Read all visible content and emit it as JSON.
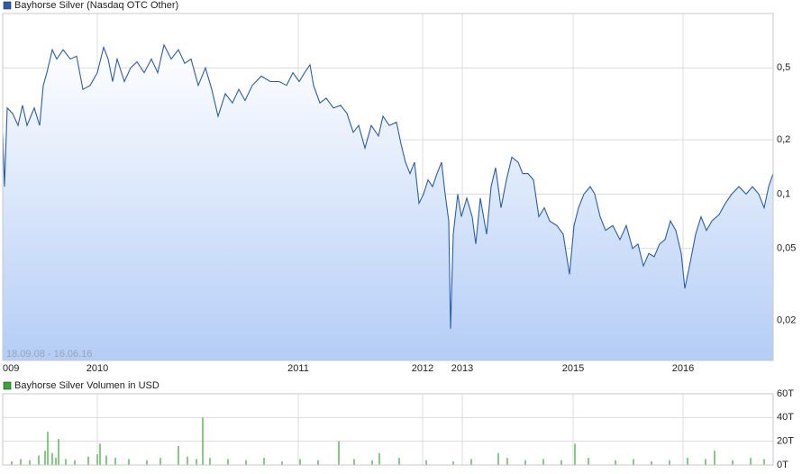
{
  "chart_data": [
    {
      "type": "line",
      "log_scale": true,
      "grid": true,
      "annotation": "18.09.08 - 16.06.16",
      "xlim": [
        0,
        855
      ],
      "ylim": [
        0.012,
        1.0
      ],
      "xticks": [
        {
          "value": 0,
          "label": "009"
        },
        {
          "value": 105,
          "label": "2010"
        },
        {
          "value": 328,
          "label": "2011"
        },
        {
          "value": 466,
          "label": "2012"
        },
        {
          "value": 510,
          "label": "2013"
        },
        {
          "value": 633,
          "label": "2015"
        },
        {
          "value": 755,
          "label": "2016"
        }
      ],
      "yticks": [
        {
          "value": 0.02,
          "label": "0,02"
        },
        {
          "value": 0.05,
          "label": "0,05"
        },
        {
          "value": 0.1,
          "label": "0,1"
        },
        {
          "value": 0.2,
          "label": "0,2"
        },
        {
          "value": 0.5,
          "label": "0,5"
        }
      ],
      "x": [
        0,
        2,
        5,
        11,
        17,
        22,
        27,
        35,
        41,
        45,
        49,
        55,
        60,
        67,
        75,
        82,
        89,
        97,
        105,
        112,
        117,
        122,
        127,
        135,
        142,
        149,
        157,
        165,
        172,
        179,
        187,
        195,
        202,
        209,
        217,
        225,
        232,
        239,
        247,
        255,
        262,
        269,
        277,
        287,
        297,
        307,
        315,
        322,
        329,
        335,
        341,
        345,
        352,
        359,
        367,
        375,
        382,
        389,
        395,
        402,
        409,
        417,
        422,
        429,
        437,
        442,
        447,
        452,
        457,
        462,
        467,
        472,
        477,
        482,
        487,
        491,
        495,
        497,
        500,
        505,
        509,
        515,
        521,
        525,
        530,
        537,
        542,
        547,
        553,
        559,
        565,
        572,
        577,
        583,
        589,
        595,
        601,
        607,
        615,
        622,
        629,
        634,
        639,
        645,
        652,
        657,
        663,
        669,
        677,
        685,
        692,
        699,
        705,
        711,
        717,
        723,
        729,
        735,
        741,
        747,
        753,
        757,
        763,
        769,
        775,
        781,
        787,
        795,
        802,
        809,
        817,
        825,
        832,
        839,
        845,
        850,
        855
      ],
      "series": [
        {
          "name": "Bayhorse Silver (Nasdaq OTC Other)",
          "color": "#2a5db0",
          "values": [
            0.22,
            0.11,
            0.3,
            0.28,
            0.24,
            0.31,
            0.24,
            0.3,
            0.24,
            0.4,
            0.47,
            0.63,
            0.56,
            0.63,
            0.56,
            0.58,
            0.38,
            0.4,
            0.47,
            0.65,
            0.56,
            0.42,
            0.56,
            0.42,
            0.5,
            0.54,
            0.47,
            0.56,
            0.47,
            0.67,
            0.56,
            0.63,
            0.53,
            0.56,
            0.4,
            0.5,
            0.38,
            0.27,
            0.36,
            0.32,
            0.38,
            0.33,
            0.4,
            0.45,
            0.42,
            0.42,
            0.4,
            0.47,
            0.42,
            0.47,
            0.52,
            0.4,
            0.32,
            0.34,
            0.3,
            0.31,
            0.28,
            0.22,
            0.24,
            0.18,
            0.24,
            0.21,
            0.27,
            0.24,
            0.25,
            0.19,
            0.15,
            0.13,
            0.15,
            0.089,
            0.1,
            0.12,
            0.11,
            0.13,
            0.15,
            0.1,
            0.071,
            0.018,
            0.06,
            0.1,
            0.075,
            0.095,
            0.075,
            0.053,
            0.095,
            0.06,
            0.11,
            0.14,
            0.084,
            0.12,
            0.16,
            0.15,
            0.13,
            0.13,
            0.12,
            0.075,
            0.084,
            0.071,
            0.067,
            0.06,
            0.036,
            0.067,
            0.084,
            0.1,
            0.11,
            0.1,
            0.075,
            0.063,
            0.067,
            0.056,
            0.067,
            0.05,
            0.053,
            0.04,
            0.047,
            0.045,
            0.053,
            0.056,
            0.071,
            0.063,
            0.047,
            0.03,
            0.042,
            0.06,
            0.075,
            0.063,
            0.071,
            0.077,
            0.089,
            0.1,
            0.11,
            0.1,
            0.11,
            0.1,
            0.084,
            0.11,
            0.13
          ]
        }
      ]
    },
    {
      "type": "bar",
      "grid": true,
      "xlim": [
        0,
        855
      ],
      "ylim": [
        0,
        60
      ],
      "yticks": [
        {
          "value": 0,
          "label": "0T"
        },
        {
          "value": 20,
          "label": "20T"
        },
        {
          "value": 40,
          "label": "40T"
        },
        {
          "value": 60,
          "label": "60T"
        }
      ],
      "x": [
        10,
        20,
        30,
        40,
        47,
        50,
        55,
        59,
        62,
        70,
        80,
        95,
        105,
        108,
        115,
        125,
        140,
        160,
        175,
        195,
        205,
        215,
        222,
        230,
        250,
        270,
        290,
        310,
        330,
        350,
        373,
        390,
        410,
        418,
        440,
        470,
        500,
        520,
        550,
        560,
        580,
        600,
        620,
        635,
        650,
        680,
        700,
        720,
        740,
        760,
        780,
        790,
        810,
        830,
        845
      ],
      "series": [
        {
          "name": "Bayhorse Silver Volumen in USD",
          "color": "#33aa33",
          "values": [
            3,
            5,
            4,
            8,
            12,
            28,
            10,
            6,
            22,
            5,
            4,
            7,
            9,
            18,
            8,
            6,
            5,
            4,
            6,
            16,
            7,
            5,
            40,
            6,
            5,
            4,
            6,
            3,
            5,
            4,
            20,
            5,
            4,
            10,
            6,
            4,
            3,
            5,
            10,
            6,
            4,
            5,
            4,
            18,
            6,
            4,
            5,
            3,
            4,
            6,
            5,
            12,
            4,
            6,
            5
          ]
        }
      ]
    }
  ]
}
